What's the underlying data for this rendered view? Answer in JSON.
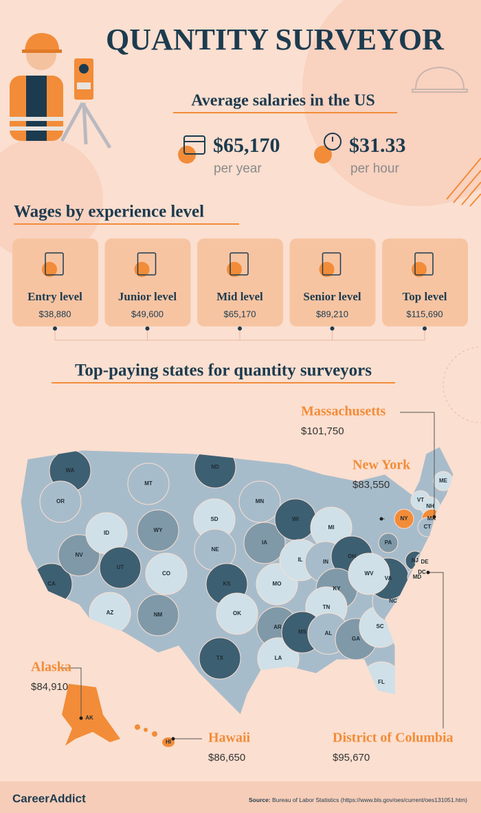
{
  "header": {
    "title": "QUANTITY SURVEYOR",
    "subtitle": "Average salaries in the US"
  },
  "averages": [
    {
      "value": "$65,170",
      "unit": "per year"
    },
    {
      "value": "$31.33",
      "unit": "per hour"
    }
  ],
  "experience": {
    "title": "Wages by experience level",
    "levels": [
      {
        "label": "Entry level",
        "wage": "$38,880"
      },
      {
        "label": "Junior level",
        "wage": "$49,600"
      },
      {
        "label": "Mid level",
        "wage": "$65,170"
      },
      {
        "label": "Senior level",
        "wage": "$89,210"
      },
      {
        "label": "Top level",
        "wage": "$115,690"
      }
    ]
  },
  "states_section": {
    "title": "Top-paying states for quantity surveyors",
    "highlights": [
      {
        "name": "Massachusetts",
        "wage": "$101,750"
      },
      {
        "name": "New York",
        "wage": "$83,550"
      },
      {
        "name": "Alaska",
        "wage": "$84,910"
      },
      {
        "name": "Hawaii",
        "wage": "$86,650"
      },
      {
        "name": "District of Columbia",
        "wage": "$95,670"
      }
    ],
    "map_labels": [
      "WA",
      "OR",
      "CA",
      "NV",
      "ID",
      "MT",
      "WY",
      "UT",
      "AZ",
      "CO",
      "NM",
      "ND",
      "SD",
      "NE",
      "KS",
      "OK",
      "TX",
      "MN",
      "IA",
      "MO",
      "AR",
      "LA",
      "WI",
      "IL",
      "MI",
      "IN",
      "OH",
      "KY",
      "TN",
      "MS",
      "AL",
      "GA",
      "FL",
      "SC",
      "NC",
      "VA",
      "WV",
      "PA",
      "NY",
      "VT",
      "NH",
      "ME",
      "MA",
      "CT",
      "NJ",
      "DE",
      "MD",
      "DC",
      "AK",
      "HI"
    ]
  },
  "footer": {
    "brand": "CareerAddict",
    "source_label": "Source:",
    "source": "Bureau of Labor Statistics (https://www.bls.gov/oes/current/oes131051.htm)"
  }
}
